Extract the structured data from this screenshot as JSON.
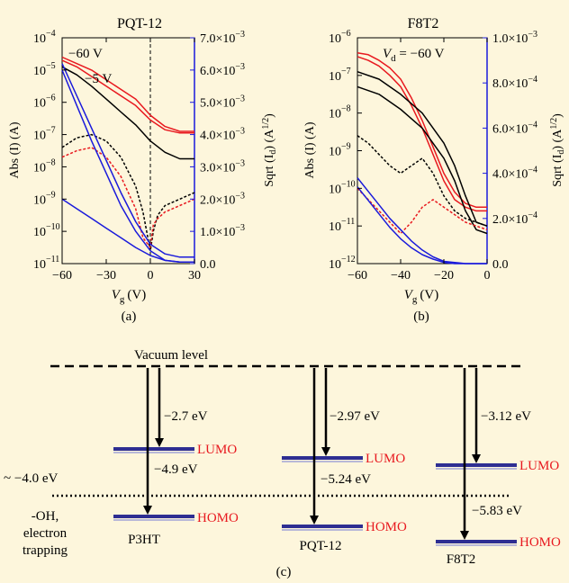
{
  "colors": {
    "background": "#fdf6dc",
    "red": "#e8191f",
    "blue": "#1a1adb",
    "black": "#000000",
    "level_bar": "#2e2e92"
  },
  "chart_data": [
    {
      "type": "line",
      "title": "PQT-12",
      "panel_label": "(a)",
      "xlabel": "V",
      "xlabel_sub": "g",
      "xlabel_unit": "(V)",
      "ylabel_left": "Abs (I) (A)",
      "ylabel_right": "Sqrt (I",
      "ylabel_right_sub": "d",
      "ylabel_right_unit": ") (A",
      "ylabel_right_sup": "1/2",
      "xlim": [
        -60,
        30
      ],
      "ylim_left_log10": [
        -11,
        -4
      ],
      "ylim_right": [
        0,
        0.007
      ],
      "x_ticks": [
        "−60",
        "−30",
        "0",
        "30"
      ],
      "y_left_ticks": [
        "10",
        "10",
        "10",
        "10",
        "10",
        "10",
        "10",
        "10"
      ],
      "y_left_exponents": [
        "−4",
        "−5",
        "−6",
        "−7",
        "−8",
        "−9",
        "−10",
        "−11"
      ],
      "y_right_ticks": [
        "7.0×10",
        "6.0×10",
        "5.0×10",
        "4.0×10",
        "3.0×10",
        "2.0×10",
        "1.0×10",
        "0.0"
      ],
      "y_right_exponents": [
        "−3",
        "−3",
        "−3",
        "−3",
        "−3",
        "−3",
        "−3",
        ""
      ],
      "annotations": [
        "−60 V",
        "−5 V"
      ],
      "series": [
        {
          "color": "red",
          "axis": "left",
          "style": "solid",
          "x": [
            -60,
            -50,
            -40,
            -30,
            -20,
            -10,
            0,
            10,
            20,
            30
          ],
          "y_log10": [
            -4.6,
            -4.8,
            -5.0,
            -5.3,
            -5.6,
            -5.9,
            -6.4,
            -6.75,
            -6.9,
            -6.9
          ]
        },
        {
          "color": "red",
          "axis": "left",
          "style": "solid",
          "x": [
            -60,
            -50,
            -40,
            -30,
            -20,
            -10,
            0,
            10,
            20,
            30
          ],
          "y_log10": [
            -4.7,
            -4.9,
            -5.2,
            -5.5,
            -5.8,
            -6.1,
            -6.55,
            -6.85,
            -6.95,
            -6.95
          ]
        },
        {
          "color": "black",
          "axis": "left",
          "style": "solid",
          "x": [
            -60,
            -50,
            -40,
            -30,
            -20,
            -10,
            0,
            10,
            20,
            30
          ],
          "y_log10": [
            -4.9,
            -5.15,
            -5.5,
            -5.9,
            -6.3,
            -6.7,
            -7.2,
            -7.55,
            -7.75,
            -7.75
          ]
        },
        {
          "color": "black",
          "axis": "left",
          "style": "dashed",
          "x": [
            -60,
            -50,
            -40,
            -30,
            -20,
            -10,
            -5,
            0,
            2,
            5,
            10,
            20,
            30
          ],
          "y_log10": [
            -7.4,
            -7.1,
            -7.0,
            -7.2,
            -7.7,
            -8.6,
            -9.4,
            -10.6,
            -10.0,
            -9.5,
            -9.2,
            -9.0,
            -8.8
          ]
        },
        {
          "color": "red",
          "axis": "left",
          "style": "dashed",
          "x": [
            -60,
            -50,
            -40,
            -30,
            -20,
            -10,
            -5,
            0,
            2,
            5,
            10,
            20,
            30
          ],
          "y_log10": [
            -7.7,
            -7.5,
            -7.4,
            -7.7,
            -8.3,
            -9.3,
            -10.2,
            -10.5,
            -9.8,
            -9.6,
            -9.4,
            -9.2,
            -9.0
          ]
        },
        {
          "color": "blue",
          "axis": "right",
          "style": "solid",
          "x": [
            -60,
            -50,
            -40,
            -30,
            -20,
            -10,
            0,
            10,
            20,
            30
          ],
          "y": [
            0.0062,
            0.0052,
            0.0042,
            0.0032,
            0.0022,
            0.0013,
            0.0006,
            0.0003,
            0.0002,
            0.0002
          ]
        },
        {
          "color": "blue",
          "axis": "right",
          "style": "solid",
          "x": [
            -60,
            -50,
            -40,
            -30,
            -20,
            -10,
            0,
            10,
            20,
            30
          ],
          "y": [
            0.006,
            0.0049,
            0.0038,
            0.0028,
            0.0018,
            0.001,
            0.0004,
            0.0001,
            5e-05,
            5e-05
          ]
        },
        {
          "color": "blue",
          "axis": "right",
          "style": "solid",
          "x": [
            -60,
            -50,
            -40,
            -30,
            -20,
            -10,
            0,
            10,
            20,
            30
          ],
          "y": [
            0.002,
            0.0017,
            0.0014,
            0.0011,
            0.0008,
            0.0005,
            0.00025,
            0.0001,
            5e-05,
            5e-05
          ]
        }
      ]
    },
    {
      "type": "line",
      "title": "F8T2",
      "panel_label": "(b)",
      "xlabel": "V",
      "xlabel_sub": "g",
      "xlabel_unit": "(V)",
      "ylabel_left": "Abs (I) (A)",
      "ylabel_right": "Sqrt (I",
      "ylabel_right_sub": "d",
      "ylabel_right_unit": ") (A",
      "ylabel_right_sup": "1/2",
      "xlim": [
        -60,
        0
      ],
      "ylim_left_log10": [
        -12,
        -6
      ],
      "ylim_right": [
        0,
        0.001
      ],
      "x_ticks": [
        "−60",
        "−40",
        "−20",
        "0"
      ],
      "y_left_ticks": [
        "10",
        "10",
        "10",
        "10",
        "10",
        "10",
        "10"
      ],
      "y_left_exponents": [
        "−6",
        "−7",
        "−8",
        "−9",
        "−10",
        "−11",
        "−12"
      ],
      "y_right_ticks": [
        "1.0×10",
        "8.0×10",
        "6.0×10",
        "4.0×10",
        "2.0×10",
        "0.0"
      ],
      "y_right_exponents": [
        "−3",
        "−4",
        "−4",
        "−4",
        "−4",
        ""
      ],
      "annotations": [
        "V",
        "d",
        " = −60 V"
      ],
      "series": [
        {
          "color": "red",
          "axis": "left",
          "style": "solid",
          "x": [
            -60,
            -55,
            -50,
            -45,
            -40,
            -35,
            -30,
            -25,
            -20,
            -15,
            -10,
            -5,
            0
          ],
          "y_log10": [
            -6.4,
            -6.45,
            -6.6,
            -6.8,
            -7.1,
            -7.6,
            -8.2,
            -8.9,
            -9.6,
            -10.1,
            -10.4,
            -10.5,
            -10.5
          ]
        },
        {
          "color": "red",
          "axis": "left",
          "style": "solid",
          "x": [
            -60,
            -55,
            -50,
            -45,
            -40,
            -35,
            -30,
            -25,
            -20,
            -15,
            -10,
            -5,
            0
          ],
          "y_log10": [
            -6.5,
            -6.6,
            -6.75,
            -7.0,
            -7.3,
            -7.8,
            -8.4,
            -9.1,
            -9.8,
            -10.3,
            -10.5,
            -10.6,
            -10.6
          ]
        },
        {
          "color": "black",
          "axis": "left",
          "style": "solid",
          "x": [
            -60,
            -50,
            -40,
            -30,
            -20,
            -15,
            -10,
            -5,
            0
          ],
          "y_log10": [
            -6.9,
            -7.1,
            -7.5,
            -8.0,
            -8.8,
            -9.4,
            -10.2,
            -10.9,
            -11.0
          ]
        },
        {
          "color": "black",
          "axis": "left",
          "style": "solid",
          "x": [
            -60,
            -50,
            -40,
            -30,
            -20,
            -15,
            -10,
            -5,
            0
          ],
          "y_log10": [
            -7.3,
            -7.5,
            -7.9,
            -8.4,
            -9.2,
            -9.8,
            -10.6,
            -11.1,
            -11.2
          ]
        },
        {
          "color": "black",
          "axis": "left",
          "style": "dashed",
          "x": [
            -60,
            -55,
            -50,
            -45,
            -40,
            -35,
            -30,
            -25,
            -20,
            -15,
            -10,
            -5,
            0
          ],
          "y_log10": [
            -8.6,
            -8.8,
            -9.1,
            -9.4,
            -9.6,
            -9.4,
            -9.2,
            -9.6,
            -10.2,
            -10.6,
            -10.8,
            -10.9,
            -11.0
          ]
        },
        {
          "color": "red",
          "axis": "left",
          "style": "dashed",
          "x": [
            -60,
            -55,
            -50,
            -45,
            -40,
            -35,
            -30,
            -25,
            -20,
            -15,
            -10,
            -5,
            0
          ],
          "y_log10": [
            -10.0,
            -10.3,
            -10.6,
            -10.9,
            -11.2,
            -10.9,
            -10.5,
            -10.3,
            -10.5,
            -10.7,
            -10.9,
            -11.0,
            -11.1
          ]
        },
        {
          "color": "blue",
          "axis": "right",
          "style": "solid",
          "x": [
            -60,
            -55,
            -50,
            -45,
            -40,
            -35,
            -30,
            -25,
            -20,
            -15,
            -10,
            -5,
            0
          ],
          "y": [
            0.00038,
            0.00032,
            0.00026,
            0.0002,
            0.00015,
            0.0001,
            6e-05,
            3e-05,
            1e-05,
            5e-06,
            0,
            0,
            0
          ]
        },
        {
          "color": "blue",
          "axis": "right",
          "style": "solid",
          "x": [
            -60,
            -55,
            -50,
            -45,
            -40,
            -35,
            -30,
            -25,
            -20,
            -15,
            -10,
            -5,
            0
          ],
          "y": [
            0.00034,
            0.00028,
            0.00022,
            0.00016,
            0.00011,
            7e-05,
            4e-05,
            2e-05,
            5e-06,
            0,
            0,
            0,
            0
          ]
        }
      ]
    }
  ],
  "diagram": {
    "panel_label": "(c)",
    "vacuum_label": "Vacuum level",
    "trap_level_label": "~ −4.0 eV",
    "trap_note_lines": [
      "-OH,",
      "electron",
      "trapping"
    ],
    "lumo_label": "LUMO",
    "homo_label": "HOMO",
    "materials": [
      {
        "name": "P3HT",
        "lumo_label": "−2.7 eV",
        "homo_label": "−4.9 eV"
      },
      {
        "name": "PQT-12",
        "lumo_label": "−2.97 eV",
        "homo_label": "−5.24 eV"
      },
      {
        "name": "F8T2",
        "lumo_label": "−3.12 eV",
        "homo_label": "−5.83 eV"
      }
    ]
  }
}
